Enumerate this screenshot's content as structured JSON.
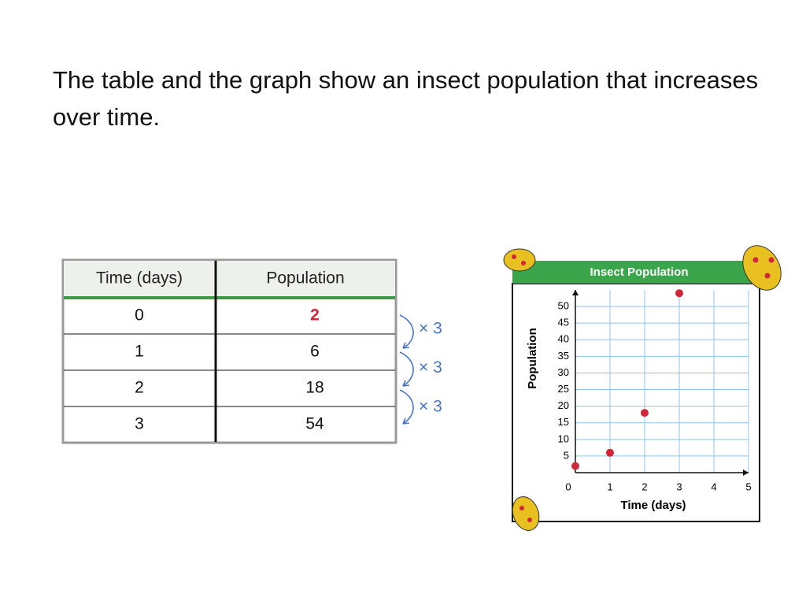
{
  "heading": "The table and the graph show an insect population that increases over time.",
  "table": {
    "columns": [
      "Time (days)",
      "Population"
    ],
    "rows": [
      [
        0,
        2
      ],
      [
        1,
        6
      ],
      [
        2,
        18
      ],
      [
        3,
        54
      ]
    ]
  },
  "multipliers": [
    "× 3",
    "× 3",
    "× 3"
  ],
  "chart_data": {
    "type": "scatter",
    "title": "Insect Population",
    "x_label": "Time (days)",
    "y_label": "Population",
    "x": [
      0,
      1,
      2,
      3
    ],
    "values": [
      2,
      6,
      18,
      54
    ],
    "color": "#d0263a",
    "xlim": [
      0,
      5
    ],
    "xticks": [
      0,
      1,
      2,
      3,
      4,
      5
    ],
    "ylim": [
      0,
      55
    ],
    "yticks": [
      5,
      10,
      15,
      20,
      25,
      30,
      35,
      40,
      45,
      50
    ],
    "grid": true
  }
}
